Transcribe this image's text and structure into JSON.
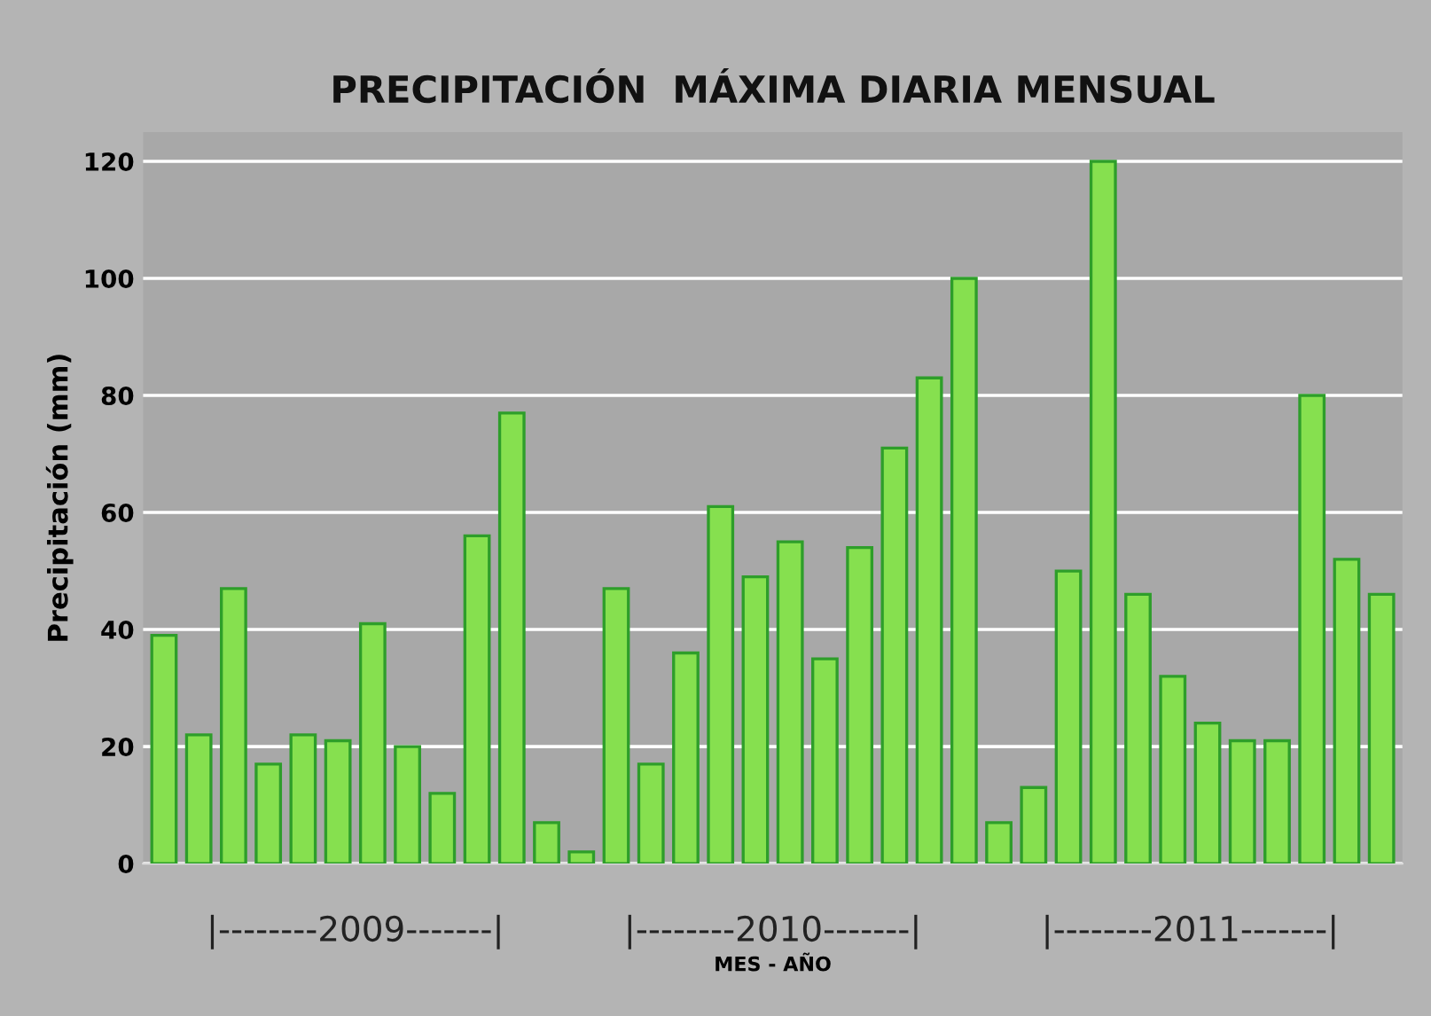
{
  "chart_data": {
    "type": "bar",
    "title": "PRECIPITACIÓN  MÁXIMA DIARIA MENSUAL",
    "xlabel": "MES - AÑO",
    "ylabel": "Precipitación (mm)",
    "categories": [
      null,
      null,
      null,
      null,
      null,
      null,
      null,
      null,
      null,
      null,
      null,
      null,
      null,
      null,
      null,
      null,
      null,
      null,
      null,
      null,
      null,
      null,
      null,
      null,
      null,
      null,
      null,
      null,
      null,
      null,
      null,
      null,
      null,
      null,
      null,
      null
    ],
    "values": [
      39,
      22,
      47,
      17,
      22,
      21,
      41,
      20,
      12,
      56,
      77,
      7,
      2,
      47,
      17,
      36,
      61,
      49,
      55,
      35,
      54,
      71,
      83,
      100,
      7,
      13,
      50,
      120,
      46,
      32,
      24,
      21,
      21,
      80,
      52,
      46
    ],
    "color": "#86e04f",
    "ylim": [
      0,
      125
    ],
    "yticks": [
      0,
      20,
      40,
      60,
      80,
      100,
      120
    ],
    "grid": "y",
    "annotations": [
      "|--------2009-------|",
      "|--------2010-------|",
      "|--------2011-------|"
    ]
  }
}
